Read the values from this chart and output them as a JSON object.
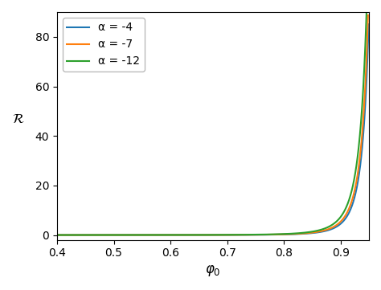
{
  "xlabel": "$\\varphi_0$",
  "ylabel": "$\\mathcal{R}$",
  "xlim": [
    0.4,
    0.95
  ],
  "ylim": [
    -2,
    90
  ],
  "alpha_values": [
    -4,
    -7,
    -12
  ],
  "colors": [
    "#1f77b4",
    "#ff7f0e",
    "#2ca02c"
  ],
  "legend_labels": [
    "α = -4",
    "α = -7",
    "α = -12"
  ],
  "phi_min": 0.4,
  "phi_max": 0.9495,
  "num_points": 3000,
  "yticks": [
    0,
    20,
    40,
    60,
    80
  ],
  "xticks": [
    0.4,
    0.5,
    0.6,
    0.7,
    0.8,
    0.9
  ],
  "line_width": 1.5,
  "R_max": 90
}
